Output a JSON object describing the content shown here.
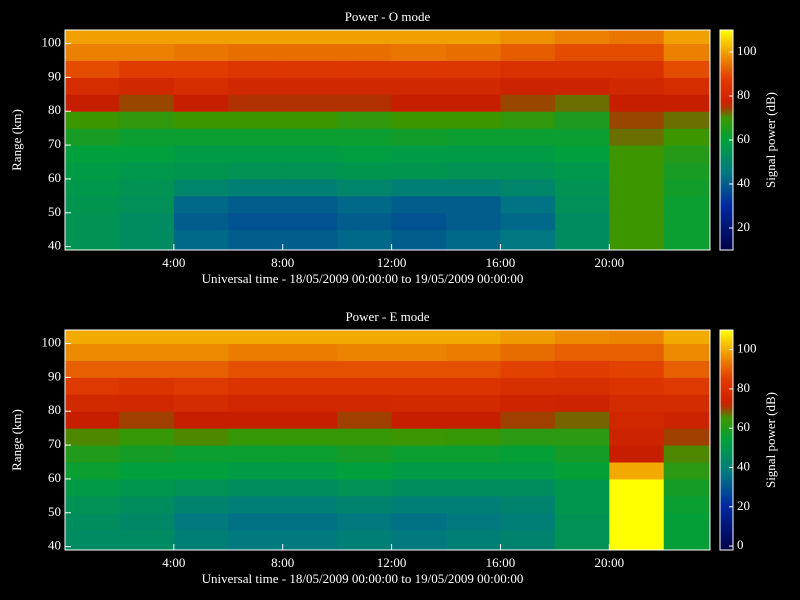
{
  "chart_data": [
    {
      "type": "heatmap",
      "title": "Power - O mode",
      "xlabel": "Universal time - 18/05/2009 00:00:00 to 19/05/2009 00:00:00",
      "ylabel": "Range (km)",
      "colorbar_label": "Signal power (dB)",
      "x_bins": [
        0,
        2,
        4,
        6,
        8,
        10,
        12,
        14,
        16,
        18,
        20,
        22,
        23.7
      ],
      "y_bins": [
        39,
        45,
        50,
        55,
        60,
        65,
        70,
        75,
        80,
        85,
        90,
        95,
        100,
        104
      ],
      "z": [
        [
          55,
          52,
          42,
          40,
          40,
          42,
          40,
          42,
          45,
          52,
          70,
          62
        ],
        [
          55,
          52,
          40,
          38,
          38,
          40,
          38,
          40,
          42,
          52,
          70,
          62
        ],
        [
          56,
          54,
          42,
          40,
          40,
          42,
          40,
          40,
          44,
          54,
          70,
          62
        ],
        [
          57,
          55,
          50,
          48,
          48,
          50,
          48,
          48,
          50,
          55,
          70,
          63
        ],
        [
          58,
          57,
          56,
          55,
          55,
          56,
          56,
          55,
          55,
          57,
          70,
          64
        ],
        [
          60,
          60,
          58,
          58,
          58,
          59,
          58,
          58,
          58,
          60,
          70,
          66
        ],
        [
          64,
          62,
          62,
          62,
          62,
          62,
          63,
          62,
          62,
          62,
          72,
          70
        ],
        [
          70,
          68,
          70,
          70,
          70,
          68,
          70,
          70,
          68,
          65,
          74,
          72
        ],
        [
          76,
          74,
          76,
          75,
          75,
          75,
          76,
          76,
          74,
          72,
          76,
          76
        ],
        [
          82,
          80,
          82,
          80,
          80,
          80,
          80,
          80,
          78,
          78,
          80,
          82
        ],
        [
          90,
          88,
          88,
          86,
          86,
          86,
          86,
          86,
          84,
          84,
          84,
          90
        ],
        [
          96,
          96,
          95,
          94,
          94,
          94,
          95,
          94,
          92,
          90,
          90,
          96
        ],
        [
          100,
          100,
          100,
          100,
          100,
          100,
          100,
          100,
          98,
          96,
          95,
          100
        ]
      ],
      "xlim": [
        0,
        23.7
      ],
      "ylim": [
        39,
        104
      ],
      "xticks": [
        {
          "value": 4,
          "label": "4:00"
        },
        {
          "value": 8,
          "label": "8:00"
        },
        {
          "value": 12,
          "label": "12:00"
        },
        {
          "value": 16,
          "label": "16:00"
        },
        {
          "value": 20,
          "label": "20:00"
        }
      ],
      "yticks": [
        40,
        50,
        60,
        70,
        80,
        90,
        100
      ],
      "zlim": [
        10,
        110
      ],
      "zticks": [
        20,
        40,
        60,
        80,
        100
      ]
    },
    {
      "type": "heatmap",
      "title": "Power - E mode",
      "xlabel": "Universal time - 18/05/2009 00:00:00 to 19/05/2009 00:00:00",
      "ylabel": "Range (km)",
      "colorbar_label": "Signal power (dB)",
      "x_bins": [
        0,
        2,
        4,
        6,
        8,
        10,
        12,
        14,
        16,
        18,
        20,
        22,
        23.7
      ],
      "y_bins": [
        39,
        45,
        50,
        55,
        60,
        65,
        70,
        75,
        80,
        85,
        90,
        95,
        100,
        104
      ],
      "z": [
        [
          45,
          45,
          40,
          38,
          38,
          40,
          38,
          40,
          42,
          48,
          110,
          55
        ],
        [
          46,
          44,
          38,
          36,
          36,
          38,
          36,
          38,
          40,
          48,
          110,
          55
        ],
        [
          48,
          46,
          42,
          40,
          40,
          42,
          40,
          40,
          42,
          50,
          110,
          56
        ],
        [
          52,
          50,
          48,
          46,
          46,
          48,
          46,
          46,
          46,
          50,
          110,
          58
        ],
        [
          56,
          54,
          54,
          52,
          52,
          54,
          52,
          52,
          52,
          55,
          100,
          62
        ],
        [
          60,
          58,
          56,
          56,
          56,
          58,
          56,
          56,
          55,
          58,
          72,
          66
        ],
        [
          66,
          64,
          66,
          64,
          64,
          64,
          65,
          64,
          62,
          62,
          74,
          70
        ],
        [
          72,
          70,
          72,
          72,
          72,
          70,
          72,
          72,
          70,
          68,
          76,
          74
        ],
        [
          77,
          76,
          78,
          76,
          76,
          76,
          77,
          77,
          75,
          74,
          78,
          78
        ],
        [
          84,
          82,
          84,
          82,
          82,
          82,
          82,
          82,
          80,
          80,
          82,
          84
        ],
        [
          90,
          90,
          90,
          88,
          88,
          88,
          88,
          88,
          86,
          85,
          86,
          90
        ],
        [
          96,
          96,
          96,
          94,
          94,
          95,
          95,
          94,
          92,
          90,
          90,
          96
        ],
        [
          100,
          100,
          100,
          100,
          100,
          100,
          100,
          100,
          98,
          96,
          95,
          100
        ]
      ],
      "xlim": [
        0,
        23.7
      ],
      "ylim": [
        39,
        104
      ],
      "xticks": [
        {
          "value": 4,
          "label": "4:00"
        },
        {
          "value": 8,
          "label": "8:00"
        },
        {
          "value": 12,
          "label": "12:00"
        },
        {
          "value": 16,
          "label": "16:00"
        },
        {
          "value": 20,
          "label": "20:00"
        }
      ],
      "yticks": [
        40,
        50,
        60,
        70,
        80,
        90,
        100
      ],
      "zlim": [
        -2,
        110
      ],
      "zticks": [
        0,
        20,
        40,
        60,
        80,
        100
      ]
    }
  ]
}
